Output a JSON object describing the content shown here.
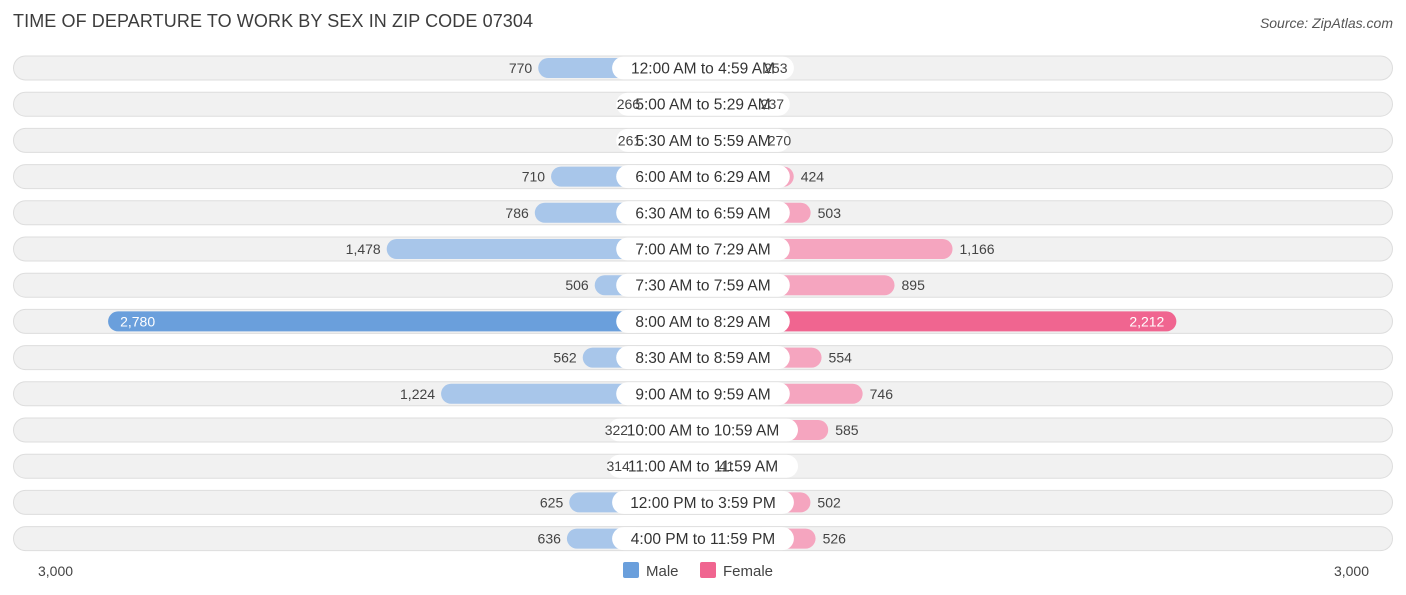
{
  "title": "TIME OF DEPARTURE TO WORK BY SEX IN ZIP CODE 07304",
  "source": "Source: ZipAtlas.com",
  "colors": {
    "male": "#a8c6ea",
    "male_highlight": "#6a9fdc",
    "female": "#f5a5bf",
    "female_highlight": "#f06590",
    "row_bg": "#f1f1f1",
    "row_border": "#dddddd"
  },
  "chart_data": {
    "type": "bar",
    "orientation": "horizontal-diverging",
    "categories": [
      "12:00 AM to 4:59 AM",
      "5:00 AM to 5:29 AM",
      "5:30 AM to 5:59 AM",
      "6:00 AM to 6:29 AM",
      "6:30 AM to 6:59 AM",
      "7:00 AM to 7:29 AM",
      "7:30 AM to 7:59 AM",
      "8:00 AM to 8:29 AM",
      "8:30 AM to 8:59 AM",
      "9:00 AM to 9:59 AM",
      "10:00 AM to 10:59 AM",
      "11:00 AM to 11:59 AM",
      "12:00 PM to 3:59 PM",
      "4:00 PM to 11:59 PM"
    ],
    "series": [
      {
        "name": "Male",
        "values": [
          770,
          266,
          261,
          710,
          786,
          1478,
          506,
          2780,
          562,
          1224,
          322,
          314,
          625,
          636
        ],
        "labels": [
          "770",
          "266",
          "261",
          "710",
          "786",
          "1,478",
          "506",
          "2,780",
          "562",
          "1,224",
          "322",
          "314",
          "625",
          "636"
        ]
      },
      {
        "name": "Female",
        "values": [
          253,
          237,
          270,
          424,
          503,
          1166,
          895,
          2212,
          554,
          746,
          585,
          41,
          502,
          526
        ],
        "labels": [
          "253",
          "237",
          "270",
          "424",
          "503",
          "1,166",
          "895",
          "2,212",
          "554",
          "746",
          "585",
          "41",
          "502",
          "526"
        ]
      }
    ],
    "xlim": [
      -3000,
      3000
    ],
    "axis_labels": {
      "left": "3,000",
      "right": "3,000"
    },
    "legend": [
      "Male",
      "Female"
    ],
    "legend_position": "bottom-center",
    "highlight_index": 7
  }
}
